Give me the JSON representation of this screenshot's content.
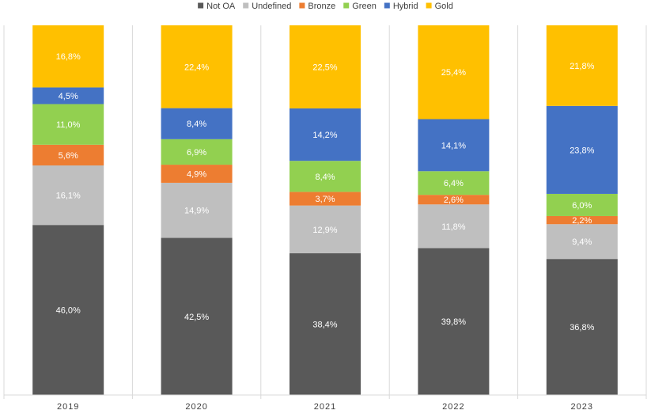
{
  "chart_data": {
    "type": "bar",
    "stacked": true,
    "percent_stacked": true,
    "title": "",
    "xlabel": "",
    "ylabel": "",
    "ylim": [
      0,
      100
    ],
    "grid": false,
    "legend_position": "top",
    "categories": [
      "2019",
      "2020",
      "2021",
      "2022",
      "2023"
    ],
    "series": [
      {
        "name": "Not OA",
        "color": "#595959",
        "values": [
          46.0,
          42.5,
          38.4,
          39.8,
          36.8
        ],
        "labels": [
          "46,0%",
          "42,5%",
          "38,4%",
          "39,8%",
          "36,8%"
        ]
      },
      {
        "name": "Undefined",
        "color": "#bfbfbf",
        "values": [
          16.1,
          14.9,
          12.9,
          11.8,
          9.4
        ],
        "labels": [
          "16,1%",
          "14,9%",
          "12,9%",
          "11,8%",
          "9,4%"
        ]
      },
      {
        "name": "Bronze",
        "color": "#ed7d31",
        "values": [
          5.6,
          4.9,
          3.7,
          2.6,
          2.2
        ],
        "labels": [
          "5,6%",
          "4,9%",
          "3,7%",
          "2,6%",
          "2,2%"
        ]
      },
      {
        "name": "Green",
        "color": "#92d050",
        "values": [
          11.0,
          6.9,
          8.4,
          6.4,
          6.0
        ],
        "labels": [
          "11,0%",
          "6,9%",
          "8,4%",
          "6,4%",
          "6,0%"
        ]
      },
      {
        "name": "Hybrid",
        "color": "#4472c4",
        "values": [
          4.5,
          8.4,
          14.2,
          14.1,
          23.8
        ],
        "labels": [
          "4,5%",
          "8,4%",
          "14,2%",
          "14,1%",
          "23,8%"
        ]
      },
      {
        "name": "Gold",
        "color": "#ffc000",
        "values": [
          16.8,
          22.4,
          22.5,
          25.4,
          21.8
        ],
        "labels": [
          "16,8%",
          "22,4%",
          "22,5%",
          "25,4%",
          "21,8%"
        ]
      }
    ]
  }
}
